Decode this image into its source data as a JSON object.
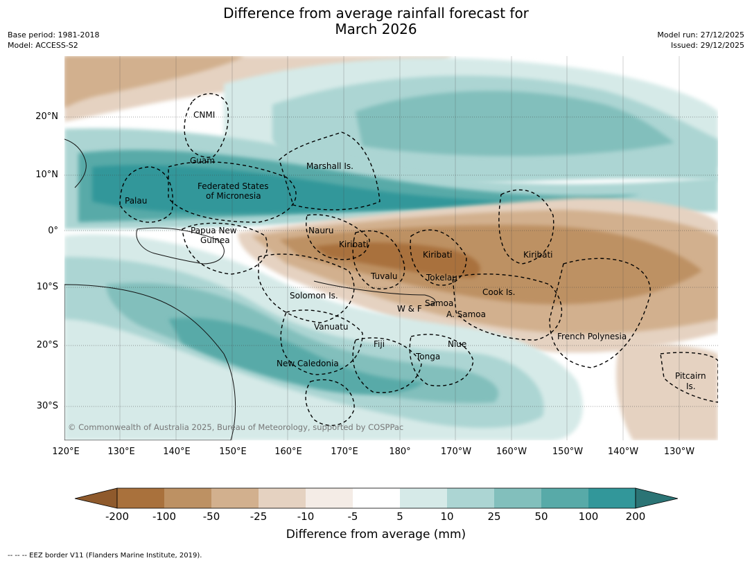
{
  "title_line1": "Difference from average rainfall forecast for",
  "title_line2": "March 2026",
  "meta_left": {
    "base_period": "Base period: 1981-2018",
    "model": "Model: ACCESS-S2"
  },
  "meta_right": {
    "model_run": "Model run: 27/12/2025",
    "issued": "Issued: 29/12/2025"
  },
  "lat_ticks": [
    "20°N",
    "10°N",
    "0°",
    "10°S",
    "20°S",
    "30°S"
  ],
  "lon_ticks": [
    "120°E",
    "130°E",
    "140°E",
    "150°E",
    "160°E",
    "170°E",
    "180°",
    "170°W",
    "160°W",
    "150°W",
    "140°W",
    "130°W"
  ],
  "copyright": "© Commonwealth of Australia 2025, Bureau of Meteorology, supported by COSPPac",
  "regions": [
    "CNMI",
    "Guam",
    "Marshall Is.",
    "Federated States",
    "of Micronesia",
    "Palau",
    "Papua New",
    "Guinea",
    "Nauru",
    "Kiribati",
    "Kiribati",
    "Kiribati",
    "Tuvalu",
    "Tokelau",
    "Cook Is.",
    "Solomon Is.",
    "W & F",
    "Samoa",
    "A. Samoa",
    "Vanuatu",
    "Fiji",
    "Niue",
    "Tonga",
    "New Caledonia",
    "French Polynesia",
    "Pitcairn",
    "Is."
  ],
  "colorbar": {
    "ticks": [
      "-200",
      "-100",
      "-50",
      "-25",
      "-10",
      "-5",
      "5",
      "10",
      "25",
      "50",
      "100",
      "200"
    ],
    "colors": [
      "#8f5a2c",
      "#a9713c",
      "#bd9163",
      "#d2b08e",
      "#e5d2c1",
      "#f4ece6",
      "#ffffff",
      "#d6eae8",
      "#acd5d3",
      "#82bfbc",
      "#58aaa8",
      "#32979a",
      "#2b7475"
    ],
    "title": "Difference from average (mm)"
  },
  "footer": "--  --  -- EEZ border V11 (Flanders Marine Institute, 2019)."
}
